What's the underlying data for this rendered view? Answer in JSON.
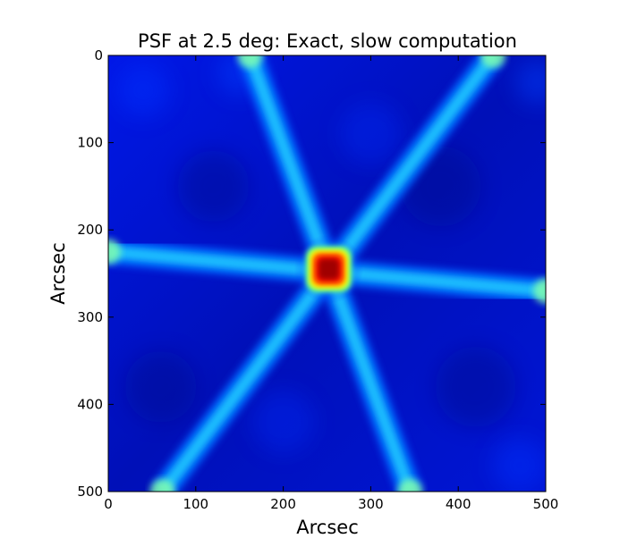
{
  "chart_data": {
    "type": "heatmap",
    "title": "PSF at 2.5 deg: Exact, slow computation",
    "xlabel": "Arcsec",
    "ylabel": "Arcsec",
    "xlim": [
      0,
      500
    ],
    "ylim": [
      500,
      0
    ],
    "xticks": [
      "0",
      "100",
      "200",
      "300",
      "400",
      "500"
    ],
    "yticks": [
      "0",
      "100",
      "200",
      "300",
      "400",
      "500"
    ],
    "colormap": "jet",
    "grid": false,
    "legend": "none",
    "features": {
      "core_center": [
        252,
        245
      ],
      "core_halfwidth": 18,
      "spikes": [
        {
          "from": [
            162,
            0
          ],
          "to": [
            345,
            500
          ]
        },
        {
          "from": [
            440,
            0
          ],
          "to": [
            62,
            500
          ]
        },
        {
          "from": [
            0,
            225
          ],
          "to": [
            500,
            270
          ]
        }
      ]
    }
  }
}
